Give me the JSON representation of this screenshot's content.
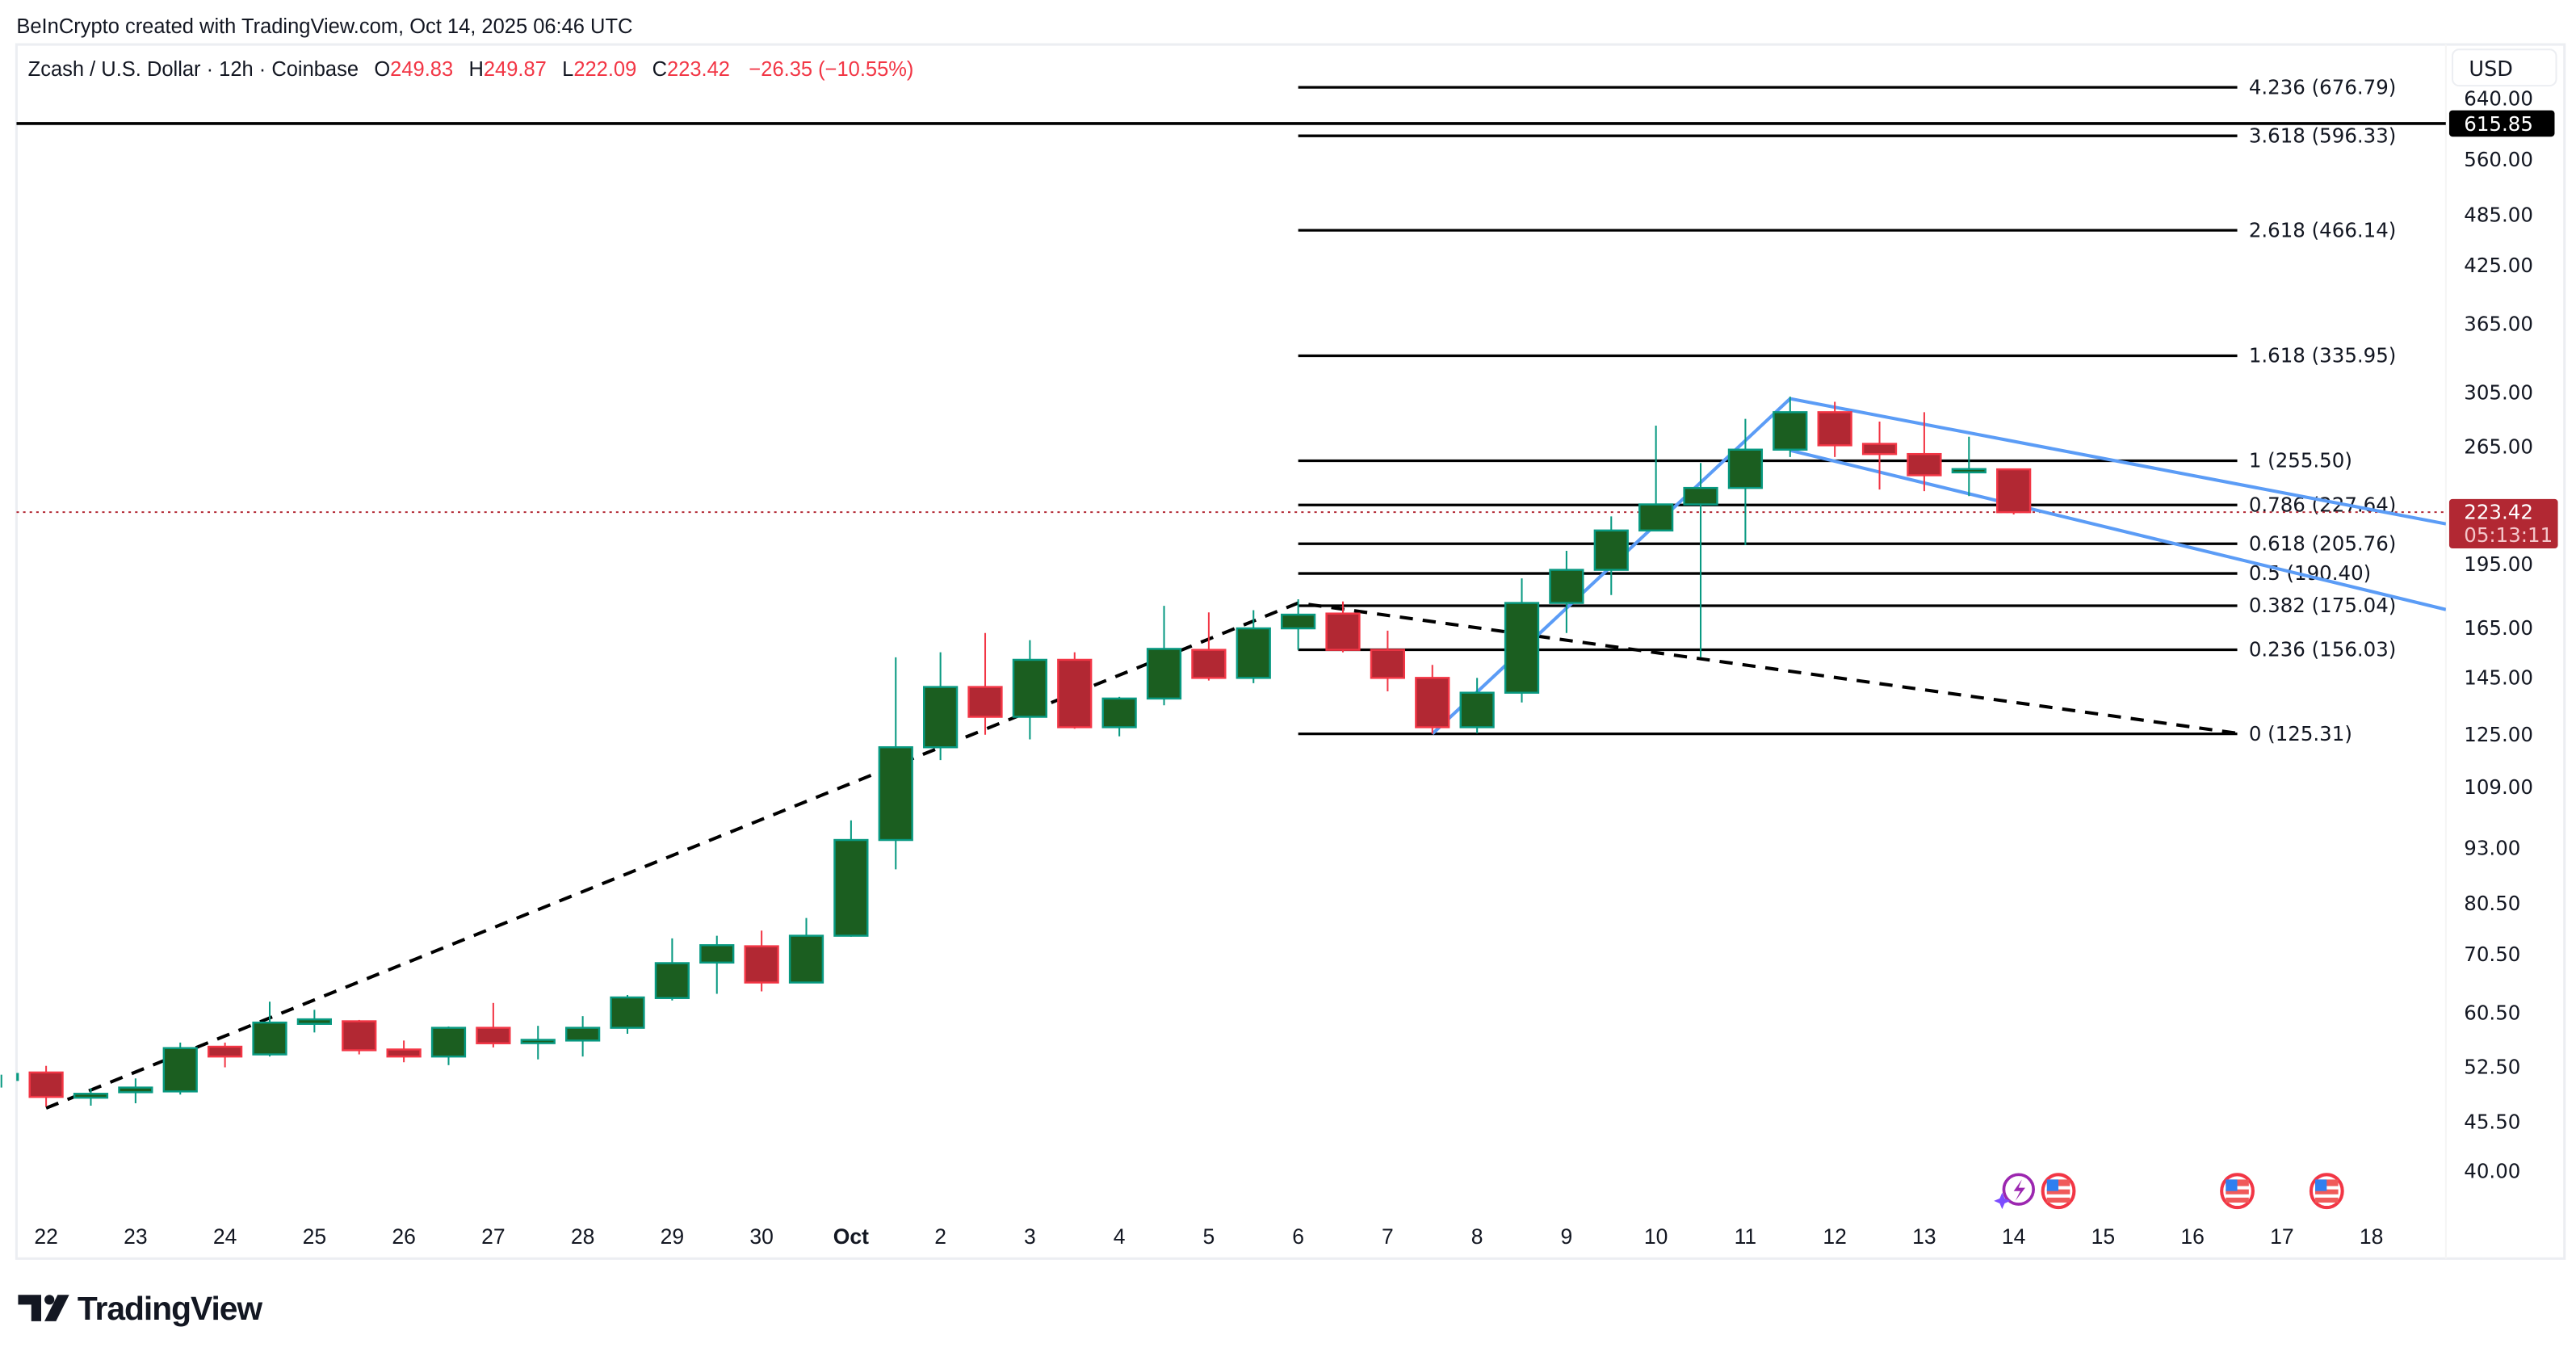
{
  "watermark": "BeInCrypto created with TradingView.com, Oct 14, 2025 06:46 UTC",
  "legend": {
    "symbol": "Zcash / U.S. Dollar · 12h · Coinbase",
    "o_label": "O",
    "o": "249.83",
    "h_label": "H",
    "h": "249.87",
    "l_label": "L",
    "l": "222.09",
    "c_label": "C",
    "c": "223.42",
    "change": "−26.35 (−10.55%)"
  },
  "currency_button": "USD",
  "horizontal_line_label": "615.85",
  "last_price": {
    "price": "223.42",
    "countdown": "05:13:11"
  },
  "logo_text": "TradingView",
  "colors": {
    "up_body": "#1b5e20",
    "up_border": "#089981",
    "down_body": "#b22833",
    "down_border": "#f23645",
    "trend_blue": "#5b9cf6",
    "last_price": "#b22833"
  },
  "events": [
    {
      "icon": "earnings-lightning-icon",
      "time": "2025-10-14T00:00"
    },
    {
      "icon": "us-flag-icon",
      "time": "2025-10-14T12:00"
    },
    {
      "icon": "us-flag-icon",
      "time": "2025-10-16T12:00"
    },
    {
      "icon": "us-flag-icon",
      "time": "2025-10-17T12:00"
    }
  ],
  "chart_data": {
    "type": "candlestick",
    "yscale": "log",
    "ylim": [
      40,
      640
    ],
    "y_ticks": [
      "640.00",
      "560.00",
      "485.00",
      "425.00",
      "365.00",
      "305.00",
      "265.00",
      "195.00",
      "165.00",
      "145.00",
      "125.00",
      "109.00",
      "93.00",
      "80.50",
      "70.50",
      "60.50",
      "52.50",
      "45.50",
      "40.00"
    ],
    "x_ticks": [
      {
        "label": "22",
        "t": "2025-09-22T00:00"
      },
      {
        "label": "23",
        "t": "2025-09-23T00:00"
      },
      {
        "label": "24",
        "t": "2025-09-24T00:00"
      },
      {
        "label": "25",
        "t": "2025-09-25T00:00"
      },
      {
        "label": "26",
        "t": "2025-09-26T00:00"
      },
      {
        "label": "27",
        "t": "2025-09-27T00:00"
      },
      {
        "label": "28",
        "t": "2025-09-28T00:00"
      },
      {
        "label": "29",
        "t": "2025-09-29T00:00"
      },
      {
        "label": "30",
        "t": "2025-09-30T00:00"
      },
      {
        "label": "Oct",
        "t": "2025-10-01T00:00",
        "bold": true
      },
      {
        "label": "2",
        "t": "2025-10-02T00:00"
      },
      {
        "label": "3",
        "t": "2025-10-03T00:00"
      },
      {
        "label": "4",
        "t": "2025-10-04T00:00"
      },
      {
        "label": "5",
        "t": "2025-10-05T00:00"
      },
      {
        "label": "6",
        "t": "2025-10-06T00:00"
      },
      {
        "label": "7",
        "t": "2025-10-07T00:00"
      },
      {
        "label": "8",
        "t": "2025-10-08T00:00"
      },
      {
        "label": "9",
        "t": "2025-10-09T00:00"
      },
      {
        "label": "10",
        "t": "2025-10-10T00:00"
      },
      {
        "label": "11",
        "t": "2025-10-11T00:00"
      },
      {
        "label": "12",
        "t": "2025-10-12T00:00"
      },
      {
        "label": "13",
        "t": "2025-10-13T00:00"
      },
      {
        "label": "14",
        "t": "2025-10-14T00:00"
      },
      {
        "label": "15",
        "t": "2025-10-15T00:00"
      },
      {
        "label": "16",
        "t": "2025-10-16T00:00"
      },
      {
        "label": "17",
        "t": "2025-10-17T00:00"
      },
      {
        "label": "18",
        "t": "2025-10-18T00:00"
      }
    ],
    "candles": [
      {
        "t": "2025-09-21T12:00",
        "o": 50.8,
        "h": 51.5,
        "l": 49.8,
        "c": 51.6
      },
      {
        "t": "2025-09-22T00:00",
        "o": 51.8,
        "h": 52.7,
        "l": 47.4,
        "c": 48.6
      },
      {
        "t": "2025-09-22T12:00",
        "o": 48.5,
        "h": 49.7,
        "l": 47.5,
        "c": 49.0
      },
      {
        "t": "2025-09-23T00:00",
        "o": 49.2,
        "h": 51.0,
        "l": 47.8,
        "c": 49.8
      },
      {
        "t": "2025-09-23T12:00",
        "o": 49.3,
        "h": 56.0,
        "l": 48.9,
        "c": 55.2
      },
      {
        "t": "2025-09-24T00:00",
        "o": 55.4,
        "h": 56.0,
        "l": 52.5,
        "c": 54.0
      },
      {
        "t": "2025-09-24T12:00",
        "o": 54.3,
        "h": 62.3,
        "l": 54.0,
        "c": 59.0
      },
      {
        "t": "2025-09-25T00:00",
        "o": 58.8,
        "h": 61.0,
        "l": 57.5,
        "c": 59.5
      },
      {
        "t": "2025-09-25T12:00",
        "o": 59.2,
        "h": 59.4,
        "l": 54.3,
        "c": 54.9
      },
      {
        "t": "2025-09-26T00:00",
        "o": 55.0,
        "h": 56.3,
        "l": 53.2,
        "c": 54.0
      },
      {
        "t": "2025-09-26T12:00",
        "o": 54.0,
        "h": 58.4,
        "l": 52.8,
        "c": 58.2
      },
      {
        "t": "2025-09-27T00:00",
        "o": 58.2,
        "h": 62.1,
        "l": 55.3,
        "c": 55.9
      },
      {
        "t": "2025-09-27T12:00",
        "o": 56.2,
        "h": 58.5,
        "l": 53.6,
        "c": 56.4
      },
      {
        "t": "2025-09-28T00:00",
        "o": 56.3,
        "h": 60.0,
        "l": 54.0,
        "c": 58.2
      },
      {
        "t": "2025-09-28T12:00",
        "o": 58.2,
        "h": 63.4,
        "l": 57.3,
        "c": 63.0
      },
      {
        "t": "2025-09-29T00:00",
        "o": 62.9,
        "h": 73.5,
        "l": 62.5,
        "c": 68.9
      },
      {
        "t": "2025-09-29T12:00",
        "o": 69.0,
        "h": 74.0,
        "l": 63.6,
        "c": 72.2
      },
      {
        "t": "2025-09-30T00:00",
        "o": 72.0,
        "h": 75.0,
        "l": 64.0,
        "c": 65.5
      },
      {
        "t": "2025-09-30T12:00",
        "o": 65.5,
        "h": 77.5,
        "l": 65.5,
        "c": 74.0
      },
      {
        "t": "2025-10-01T00:00",
        "o": 74.0,
        "h": 100.0,
        "l": 73.8,
        "c": 95.0
      },
      {
        "t": "2025-10-01T12:00",
        "o": 95.0,
        "h": 153.0,
        "l": 88.0,
        "c": 121.0
      },
      {
        "t": "2025-10-02T00:00",
        "o": 121.0,
        "h": 155.0,
        "l": 117.0,
        "c": 141.6
      },
      {
        "t": "2025-10-02T12:00",
        "o": 141.6,
        "h": 163.0,
        "l": 125.0,
        "c": 131.0
      },
      {
        "t": "2025-10-03T00:00",
        "o": 131.0,
        "h": 160.0,
        "l": 123.5,
        "c": 152.0
      },
      {
        "t": "2025-10-03T12:00",
        "o": 152.0,
        "h": 155.0,
        "l": 127.0,
        "c": 127.5
      },
      {
        "t": "2025-10-04T00:00",
        "o": 127.5,
        "h": 138.0,
        "l": 124.5,
        "c": 137.4
      },
      {
        "t": "2025-10-04T12:00",
        "o": 137.4,
        "h": 175.0,
        "l": 135.0,
        "c": 156.4
      },
      {
        "t": "2025-10-05T00:00",
        "o": 156.0,
        "h": 172.0,
        "l": 144.0,
        "c": 145.0
      },
      {
        "t": "2025-10-05T12:00",
        "o": 145.0,
        "h": 173.0,
        "l": 143.0,
        "c": 165.0
      },
      {
        "t": "2025-10-06T00:00",
        "o": 165.0,
        "h": 178.0,
        "l": 156.0,
        "c": 171.0
      },
      {
        "t": "2025-10-06T12:00",
        "o": 171.5,
        "h": 177.0,
        "l": 155.0,
        "c": 156.0
      },
      {
        "t": "2025-10-07T00:00",
        "o": 156.0,
        "h": 164.0,
        "l": 140.0,
        "c": 145.0
      },
      {
        "t": "2025-10-07T12:00",
        "o": 145.0,
        "h": 150.0,
        "l": 125.3,
        "c": 127.5
      },
      {
        "t": "2025-10-08T00:00",
        "o": 127.5,
        "h": 145.0,
        "l": 125.5,
        "c": 139.5
      },
      {
        "t": "2025-10-08T12:00",
        "o": 139.5,
        "h": 188.0,
        "l": 136.0,
        "c": 176.3
      },
      {
        "t": "2025-10-09T00:00",
        "o": 176.3,
        "h": 202.0,
        "l": 163.0,
        "c": 192.2
      },
      {
        "t": "2025-10-09T12:00",
        "o": 192.2,
        "h": 221.0,
        "l": 180.0,
        "c": 213.0
      },
      {
        "t": "2025-10-10T00:00",
        "o": 213.0,
        "h": 280.0,
        "l": 213.0,
        "c": 228.0
      },
      {
        "t": "2025-10-10T12:00",
        "o": 228.0,
        "h": 254.0,
        "l": 153.0,
        "c": 238.0
      },
      {
        "t": "2025-10-11T00:00",
        "o": 238.0,
        "h": 285.0,
        "l": 205.0,
        "c": 263.0
      },
      {
        "t": "2025-10-11T12:00",
        "o": 263.0,
        "h": 302.0,
        "l": 258.0,
        "c": 290.0
      },
      {
        "t": "2025-10-12T00:00",
        "o": 290.0,
        "h": 298.0,
        "l": 258.0,
        "c": 266.0
      },
      {
        "t": "2025-10-12T12:00",
        "o": 267.0,
        "h": 283.0,
        "l": 237.0,
        "c": 260.0
      },
      {
        "t": "2025-10-13T00:00",
        "o": 260.0,
        "h": 290.0,
        "l": 236.0,
        "c": 246.0
      },
      {
        "t": "2025-10-13T12:00",
        "o": 249.0,
        "h": 272.0,
        "l": 233.0,
        "c": 250.0
      },
      {
        "t": "2025-10-14T00:00",
        "o": 249.83,
        "h": 249.87,
        "l": 222.09,
        "c": 223.42
      }
    ],
    "fibonacci": {
      "start": "2025-10-06T00:00",
      "end": "2025-10-16T12:00",
      "levels": [
        {
          "ratio": "4.236",
          "price": 676.79,
          "label": "4.236 (676.79)"
        },
        {
          "ratio": "3.618",
          "price": 596.33,
          "label": "3.618 (596.33)"
        },
        {
          "ratio": "2.618",
          "price": 466.14,
          "label": "2.618 (466.14)"
        },
        {
          "ratio": "1.618",
          "price": 335.95,
          "label": "1.618 (335.95)"
        },
        {
          "ratio": "1",
          "price": 255.5,
          "label": "1 (255.50)"
        },
        {
          "ratio": "0.786",
          "price": 227.64,
          "label": "0.786 (227.64)"
        },
        {
          "ratio": "0.618",
          "price": 205.76,
          "label": "0.618 (205.76)"
        },
        {
          "ratio": "0.5",
          "price": 190.4,
          "label": "0.5 (190.40)"
        },
        {
          "ratio": "0.382",
          "price": 175.04,
          "label": "0.382 (175.04)"
        },
        {
          "ratio": "0.236",
          "price": 156.03,
          "label": "0.236 (156.03)"
        },
        {
          "ratio": "0",
          "price": 125.31,
          "label": "0 (125.31)"
        }
      ]
    },
    "horizontal_line": 615.85,
    "last_price": 223.42,
    "trendlines": [
      {
        "style": "dashed",
        "color": "#000000",
        "points": [
          [
            "2025-09-22T00:00",
            47.2
          ],
          [
            "2025-10-06T00:00",
            176.3
          ],
          [
            "2025-10-16T12:00",
            125.5
          ]
        ]
      },
      {
        "style": "solid",
        "color": "#5b9cf6",
        "points": [
          [
            "2025-10-07T12:00",
            125.3
          ],
          [
            "2025-10-11T12:00",
            300.4
          ]
        ]
      },
      {
        "style": "solid",
        "color": "#5b9cf6",
        "points": [
          [
            "2025-10-11T12:00",
            300.4
          ],
          [
            "2025-10-18T20:00",
            216.7
          ]
        ]
      },
      {
        "style": "solid",
        "color": "#5b9cf6",
        "points": [
          [
            "2025-10-11T12:00",
            262.5
          ],
          [
            "2025-10-18T20:00",
            173.3
          ]
        ]
      }
    ]
  }
}
